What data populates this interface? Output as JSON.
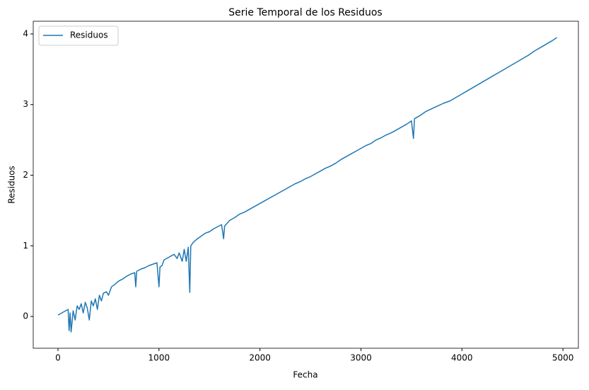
{
  "chart_data": {
    "type": "line",
    "title": "Serie Temporal de los Residuos",
    "x_label": "Fecha",
    "y_label": "Residuos",
    "x": [
      0,
      100,
      110,
      120,
      130,
      150,
      170,
      190,
      210,
      230,
      250,
      270,
      290,
      310,
      330,
      350,
      370,
      390,
      410,
      430,
      450,
      480,
      500,
      530,
      560,
      600,
      640,
      680,
      720,
      760,
      770,
      780,
      820,
      860,
      900,
      940,
      980,
      1000,
      1010,
      1030,
      1050,
      1100,
      1150,
      1180,
      1200,
      1230,
      1250,
      1270,
      1290,
      1305,
      1315,
      1340,
      1380,
      1420,
      1460,
      1500,
      1540,
      1580,
      1620,
      1640,
      1650,
      1700,
      1750,
      1800,
      1850,
      1900,
      1950,
      2000,
      2050,
      2100,
      2150,
      2200,
      2250,
      2300,
      2350,
      2400,
      2450,
      2500,
      2550,
      2600,
      2650,
      2700,
      2750,
      2800,
      2850,
      2900,
      2950,
      3000,
      3050,
      3100,
      3150,
      3200,
      3250,
      3300,
      3350,
      3400,
      3450,
      3500,
      3520,
      3530,
      3580,
      3640,
      3700,
      3760,
      3820,
      3880,
      3940,
      4000,
      4060,
      4120,
      4180,
      4240,
      4300,
      4360,
      4420,
      4480,
      4540,
      4600,
      4660,
      4720,
      4780,
      4840,
      4900,
      4940
    ],
    "series": [
      {
        "name": "Residuos",
        "color": "#1f77b4",
        "values": [
          0.02,
          0.1,
          -0.2,
          0.05,
          -0.22,
          0.08,
          -0.05,
          0.15,
          0.1,
          0.18,
          0.05,
          0.2,
          0.12,
          -0.05,
          0.22,
          0.15,
          0.25,
          0.1,
          0.3,
          0.22,
          0.33,
          0.35,
          0.3,
          0.42,
          0.45,
          0.5,
          0.53,
          0.57,
          0.6,
          0.62,
          0.42,
          0.64,
          0.67,
          0.69,
          0.72,
          0.74,
          0.76,
          0.42,
          0.7,
          0.72,
          0.8,
          0.84,
          0.88,
          0.82,
          0.9,
          0.78,
          0.95,
          0.78,
          0.98,
          0.34,
          1.0,
          1.05,
          1.1,
          1.14,
          1.18,
          1.2,
          1.24,
          1.27,
          1.3,
          1.1,
          1.28,
          1.36,
          1.4,
          1.45,
          1.48,
          1.52,
          1.56,
          1.6,
          1.64,
          1.68,
          1.72,
          1.76,
          1.8,
          1.84,
          1.88,
          1.91,
          1.95,
          1.98,
          2.02,
          2.06,
          2.1,
          2.13,
          2.17,
          2.22,
          2.26,
          2.3,
          2.34,
          2.38,
          2.42,
          2.45,
          2.5,
          2.53,
          2.57,
          2.6,
          2.64,
          2.68,
          2.72,
          2.77,
          2.52,
          2.8,
          2.84,
          2.9,
          2.94,
          2.98,
          3.02,
          3.05,
          3.1,
          3.15,
          3.2,
          3.25,
          3.3,
          3.35,
          3.4,
          3.45,
          3.5,
          3.55,
          3.6,
          3.65,
          3.7,
          3.76,
          3.81,
          3.86,
          3.91,
          3.95
        ]
      }
    ],
    "xlim": [
      -245,
      5153
    ],
    "ylim": [
      -0.45,
      4.18
    ],
    "xticks": [
      0,
      1000,
      2000,
      3000,
      4000,
      5000
    ],
    "yticks": [
      0,
      1,
      2,
      3,
      4
    ],
    "legend": "upper left"
  }
}
